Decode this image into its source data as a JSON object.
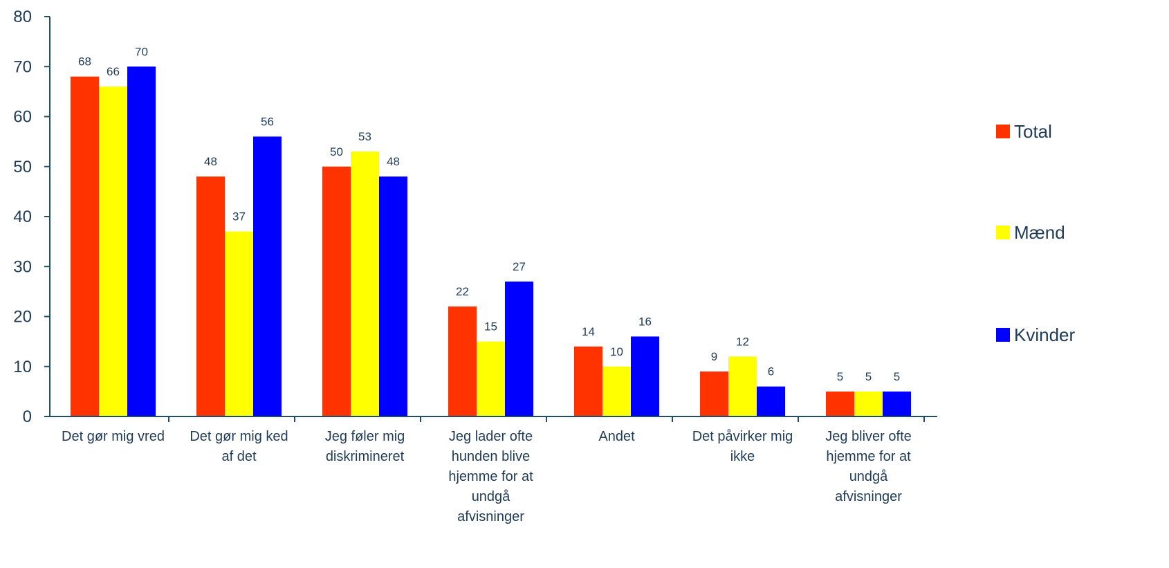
{
  "chart_data": {
    "type": "bar",
    "title": "",
    "xlabel": "",
    "ylabel": "",
    "ylim": [
      0,
      80
    ],
    "yticks": [
      0,
      10,
      20,
      30,
      40,
      50,
      60,
      70,
      80
    ],
    "grid": false,
    "legend_position": "right",
    "categories": [
      "Det gør mig vred",
      "Det gør mig ked af det",
      "Jeg føler mig diskrimineret",
      "Jeg lader ofte hunden blive hjemme for at undgå afvisninger",
      "Andet",
      "Det påvirker mig ikke",
      "Jeg bliver ofte hjemme for at undgå afvisninger"
    ],
    "category_label_lines": [
      [
        "Det gør mig vred"
      ],
      [
        "Det gør mig ked",
        "af det"
      ],
      [
        "Jeg føler mig",
        "diskrimineret"
      ],
      [
        "Jeg lader ofte",
        "hunden blive",
        "hjemme for at",
        "undgå",
        "afvisninger"
      ],
      [
        "Andet"
      ],
      [
        "Det påvirker mig",
        "ikke"
      ],
      [
        "Jeg bliver ofte",
        "hjemme for at",
        "undgå",
        "afvisninger"
      ]
    ],
    "series": [
      {
        "name": "Total",
        "color": "#ff3300",
        "values": [
          68,
          48,
          50,
          22,
          14,
          9,
          5
        ]
      },
      {
        "name": "Mænd",
        "color": "#ffff00",
        "values": [
          66,
          37,
          53,
          15,
          10,
          12,
          5
        ]
      },
      {
        "name": "Kvinder",
        "color": "#0000ff",
        "values": [
          70,
          56,
          48,
          27,
          16,
          6,
          5
        ]
      }
    ],
    "axis_color": "#1f4e66",
    "text_color": "#1f3b57"
  }
}
